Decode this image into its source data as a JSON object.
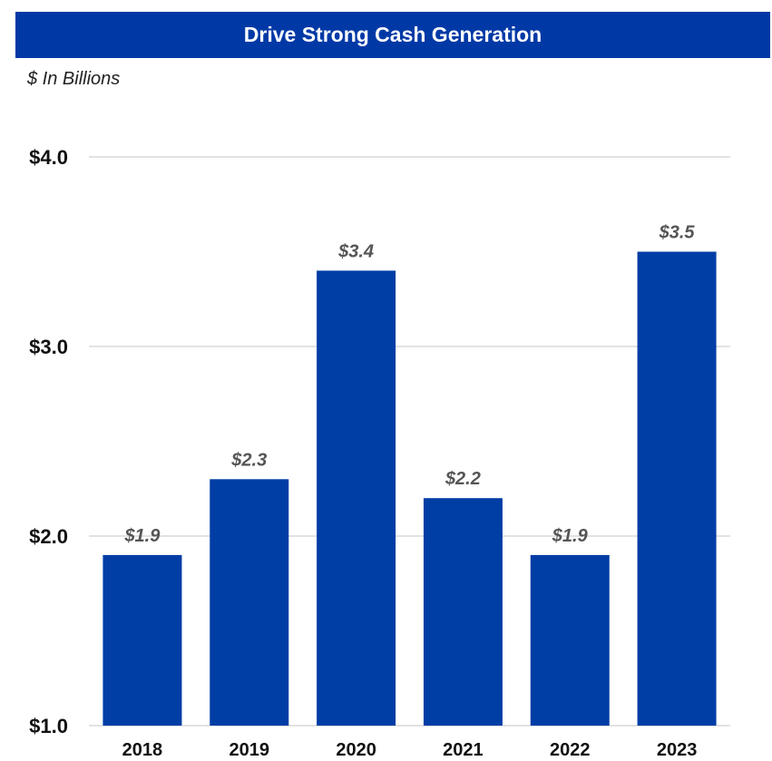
{
  "colors": {
    "banner": "#0039a6",
    "bar": "#003da5",
    "grid": "#d9d9d9"
  },
  "chart_data": {
    "type": "bar",
    "title": "Drive Strong Cash Generation",
    "subtitle": "$ In Billions",
    "categories": [
      "2018",
      "2019",
      "2020",
      "2021",
      "2022",
      "2023"
    ],
    "values": [
      1.9,
      2.3,
      3.4,
      2.2,
      1.9,
      3.5
    ],
    "data_labels": [
      "$1.9",
      "$2.3",
      "$3.4",
      "$2.2",
      "$1.9",
      "$3.5"
    ],
    "yticks": [
      1.0,
      2.0,
      3.0,
      4.0
    ],
    "ytick_labels": [
      "$1.0",
      "$2.0",
      "$3.0",
      "$4.0"
    ],
    "ylim": [
      1.0,
      4.0
    ],
    "grid": true,
    "legend": "none"
  }
}
